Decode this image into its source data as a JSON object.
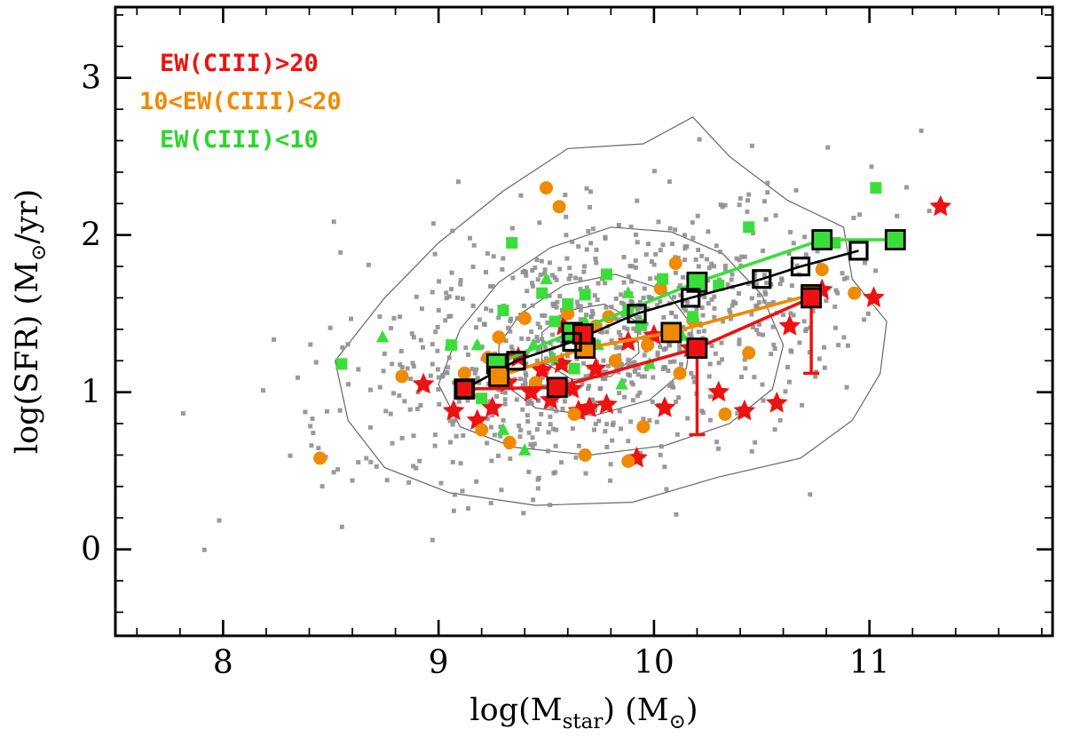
{
  "chart_data": {
    "type": "scatter",
    "title": "",
    "xlabel": "log(M_star) (M_sun)",
    "ylabel": "log(SFR) (M_sun/yr)",
    "xlabel_parts": {
      "p1": "log(M",
      "sub": "star",
      "p2": ") (M",
      "sun": "⊙",
      "p3": ")"
    },
    "ylabel_parts": {
      "p1": "log(SFR) (M",
      "sun": "⊙",
      "p2": "/yr)"
    },
    "xlim": [
      7.5,
      11.85
    ],
    "ylim": [
      -0.55,
      3.45
    ],
    "xticks": [
      8,
      9,
      10,
      11
    ],
    "yticks": [
      0,
      1,
      2,
      3
    ],
    "minor_tick_step": 0.2,
    "grid": false,
    "legend_position": "top-left",
    "legend": [
      {
        "label": "EW(CIII)>20",
        "color": "#ee1111"
      },
      {
        "label": "10<EW(CIII)<20",
        "color": "#f08a00"
      },
      {
        "label": "EW(CIII)<10",
        "color": "#2ed42e"
      }
    ],
    "colors": {
      "red": "#ee1111",
      "orange": "#f08a00",
      "green": "#3ade3a",
      "gray": "#8f8f8f",
      "black": "#000000"
    },
    "background_cloud": {
      "n": 880,
      "seed": 20240607,
      "center": [
        9.73,
        1.33
      ],
      "sigma": [
        0.57,
        0.44
      ],
      "corr": 0.42,
      "marker": "square",
      "size": 5,
      "color": "gray"
    },
    "contours": {
      "color": "#666666",
      "levels": [
        [
          [
            8.52,
            1.2
          ],
          [
            8.58,
            0.82
          ],
          [
            8.75,
            0.52
          ],
          [
            9.05,
            0.36
          ],
          [
            9.45,
            0.28
          ],
          [
            9.9,
            0.3
          ],
          [
            10.3,
            0.46
          ],
          [
            10.68,
            0.58
          ],
          [
            10.92,
            0.82
          ],
          [
            11.05,
            1.12
          ],
          [
            11.08,
            1.45
          ],
          [
            10.92,
            1.72
          ],
          [
            10.88,
            2.05
          ],
          [
            10.62,
            2.22
          ],
          [
            10.35,
            2.5
          ],
          [
            10.18,
            2.75
          ],
          [
            9.95,
            2.58
          ],
          [
            9.6,
            2.55
          ],
          [
            9.3,
            2.28
          ],
          [
            9.0,
            1.95
          ],
          [
            8.75,
            1.6
          ]
        ],
        [
          [
            9.0,
            1.05
          ],
          [
            9.1,
            0.78
          ],
          [
            9.35,
            0.65
          ],
          [
            9.7,
            0.6
          ],
          [
            10.05,
            0.66
          ],
          [
            10.35,
            0.8
          ],
          [
            10.55,
            1.02
          ],
          [
            10.6,
            1.3
          ],
          [
            10.5,
            1.62
          ],
          [
            10.32,
            1.88
          ],
          [
            10.08,
            2.02
          ],
          [
            9.8,
            2.05
          ],
          [
            9.52,
            1.92
          ],
          [
            9.28,
            1.7
          ],
          [
            9.1,
            1.4
          ]
        ],
        [
          [
            9.28,
            1.08
          ],
          [
            9.45,
            0.9
          ],
          [
            9.72,
            0.85
          ],
          [
            9.98,
            0.95
          ],
          [
            10.15,
            1.15
          ],
          [
            10.18,
            1.42
          ],
          [
            10.05,
            1.65
          ],
          [
            9.82,
            1.75
          ],
          [
            9.58,
            1.68
          ],
          [
            9.38,
            1.5
          ],
          [
            9.28,
            1.3
          ]
        ],
        [
          [
            9.48,
            1.2
          ],
          [
            9.62,
            1.08
          ],
          [
            9.8,
            1.1
          ],
          [
            9.93,
            1.25
          ],
          [
            9.92,
            1.45
          ],
          [
            9.77,
            1.56
          ],
          [
            9.6,
            1.52
          ],
          [
            9.48,
            1.38
          ]
        ]
      ]
    },
    "series": [
      {
        "name": "high-ew-stars",
        "legend": "EW(CIII)>20",
        "marker": "star",
        "color": "red",
        "size": 13,
        "points": [
          [
            8.93,
            1.05
          ],
          [
            9.07,
            0.88
          ],
          [
            9.18,
            0.82
          ],
          [
            9.25,
            0.9
          ],
          [
            9.32,
            1.06
          ],
          [
            9.37,
            1.22
          ],
          [
            9.43,
            1.0
          ],
          [
            9.48,
            1.14
          ],
          [
            9.52,
            0.95
          ],
          [
            9.57,
            1.18
          ],
          [
            9.58,
            1.42
          ],
          [
            9.62,
            1.02
          ],
          [
            9.65,
            0.88
          ],
          [
            9.7,
            0.9
          ],
          [
            9.73,
            1.15
          ],
          [
            9.78,
            0.92
          ],
          [
            9.88,
            1.32
          ],
          [
            9.92,
            0.58
          ],
          [
            10.0,
            1.36
          ],
          [
            10.05,
            0.9
          ],
          [
            10.17,
            1.28
          ],
          [
            10.3,
            1.0
          ],
          [
            10.42,
            0.88
          ],
          [
            10.57,
            0.93
          ],
          [
            10.63,
            1.42
          ],
          [
            10.78,
            1.65
          ],
          [
            11.02,
            1.6
          ],
          [
            11.33,
            2.18
          ]
        ]
      },
      {
        "name": "mid-ew-circles",
        "legend": "10<EW(CIII)<20",
        "marker": "circle",
        "color": "orange",
        "size": 7.5,
        "points": [
          [
            8.45,
            0.58
          ],
          [
            8.83,
            1.1
          ],
          [
            9.12,
            1.12
          ],
          [
            9.2,
            0.76
          ],
          [
            9.23,
            1.22
          ],
          [
            9.28,
            1.35
          ],
          [
            9.33,
            0.68
          ],
          [
            9.4,
            1.47
          ],
          [
            9.45,
            1.06
          ],
          [
            9.5,
            2.3
          ],
          [
            9.56,
            2.18
          ],
          [
            9.6,
            1.5
          ],
          [
            9.63,
            0.86
          ],
          [
            9.68,
            0.6
          ],
          [
            9.73,
            1.42
          ],
          [
            9.79,
            1.48
          ],
          [
            9.82,
            1.2
          ],
          [
            9.88,
            0.56
          ],
          [
            9.95,
            0.78
          ],
          [
            9.97,
            1.3
          ],
          [
            10.03,
            1.66
          ],
          [
            10.1,
            1.82
          ],
          [
            10.12,
            1.12
          ],
          [
            10.18,
            1.46
          ],
          [
            10.33,
            0.86
          ],
          [
            10.44,
            1.25
          ],
          [
            10.78,
            1.78
          ],
          [
            10.93,
            1.63
          ]
        ]
      },
      {
        "name": "low-ew-squares",
        "legend": "EW(CIII)<10",
        "marker": "square",
        "color": "green",
        "size": 13,
        "points": [
          [
            8.55,
            1.18
          ],
          [
            9.06,
            1.3
          ],
          [
            9.2,
            0.96
          ],
          [
            9.3,
            1.52
          ],
          [
            9.34,
            1.95
          ],
          [
            9.48,
            1.63
          ],
          [
            9.54,
            1.45
          ],
          [
            9.6,
            1.56
          ],
          [
            9.63,
            1.15
          ],
          [
            9.68,
            1.62
          ],
          [
            9.78,
            1.75
          ],
          [
            9.88,
            1.52
          ],
          [
            9.94,
            1.43
          ],
          [
            10.04,
            1.72
          ],
          [
            10.18,
            1.48
          ],
          [
            10.3,
            1.68
          ],
          [
            10.44,
            2.05
          ],
          [
            10.84,
            1.95
          ],
          [
            11.03,
            2.3
          ],
          [
            11.12,
            1.97
          ]
        ]
      },
      {
        "name": "low-ew-triangles",
        "legend": "EW(CIII)<10",
        "marker": "triangle",
        "color": "green",
        "size": 8,
        "points": [
          [
            8.74,
            1.35
          ],
          [
            9.18,
            1.3
          ],
          [
            9.3,
            0.76
          ],
          [
            9.4,
            0.63
          ],
          [
            9.44,
            1.3
          ],
          [
            9.5,
            1.72
          ],
          [
            9.53,
            1.22
          ],
          [
            9.58,
            1.0
          ],
          [
            9.68,
            1.45
          ],
          [
            9.74,
            1.3
          ],
          [
            9.85,
            1.05
          ],
          [
            9.88,
            1.63
          ],
          [
            9.98,
            1.18
          ],
          [
            10.13,
            1.36
          ]
        ]
      }
    ],
    "medians": [
      {
        "name": "median-all",
        "color": "black",
        "marker": "open-square",
        "size": 19,
        "line_width": 2.6,
        "points": [
          [
            9.12,
            1.02
          ],
          [
            9.36,
            1.2
          ],
          [
            9.62,
            1.32
          ],
          [
            9.92,
            1.5
          ],
          [
            10.17,
            1.6
          ],
          [
            10.5,
            1.72
          ],
          [
            10.68,
            1.8
          ],
          [
            10.95,
            1.9
          ]
        ]
      },
      {
        "name": "median-low-ew",
        "color": "green",
        "marker": "filled-square",
        "size": 21,
        "line_width": 3.6,
        "points": [
          [
            9.27,
            1.18
          ],
          [
            9.62,
            1.38
          ],
          [
            10.2,
            1.7
          ],
          [
            10.78,
            1.97
          ],
          [
            11.12,
            1.97
          ]
        ]
      },
      {
        "name": "median-mid-ew",
        "color": "orange",
        "marker": "filled-square",
        "size": 21,
        "line_width": 3.6,
        "points": [
          [
            9.28,
            1.1
          ],
          [
            9.68,
            1.28
          ],
          [
            10.08,
            1.38
          ],
          [
            10.73,
            1.62
          ]
        ]
      },
      {
        "name": "median-high-ew",
        "color": "red",
        "marker": "filled-square",
        "size": 21,
        "line_width": 3.6,
        "points": [
          [
            9.12,
            1.02
          ],
          [
            9.55,
            1.03
          ],
          [
            10.2,
            1.28
          ],
          [
            10.73,
            1.6
          ]
        ],
        "extra_points": [
          [
            9.67,
            1.37
          ]
        ],
        "error_bars": [
          {
            "x": 10.2,
            "y": 1.28,
            "y_low": 0.73
          },
          {
            "x": 10.73,
            "y": 1.6,
            "y_low": 1.12
          }
        ]
      }
    ]
  }
}
